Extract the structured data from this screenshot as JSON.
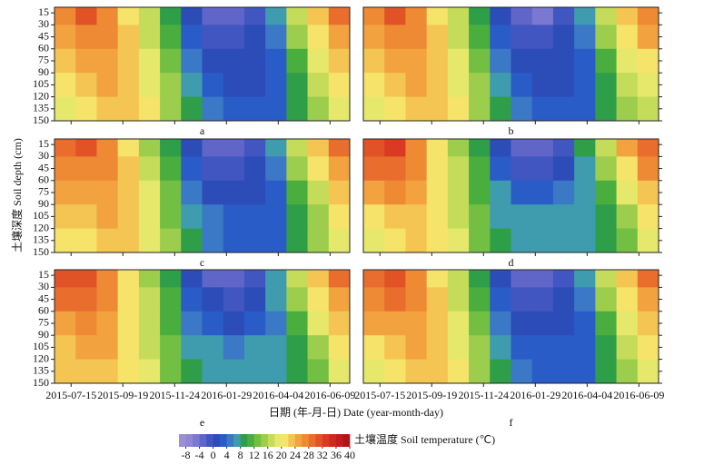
{
  "chart_data": {
    "type": "heatmap",
    "y_label": "土壤深度 Soil depth (cm)",
    "x_label": "日期 (年-月-日) Date (year-month-day)",
    "xticks": [
      "2015-07-15",
      "2015-09-19",
      "2015-11-24",
      "2016-01-29",
      "2016-04-04",
      "2016-06-09"
    ],
    "ylim": [
      8,
      150
    ],
    "yticks": [
      15,
      30,
      45,
      60,
      75,
      90,
      105,
      120,
      135,
      150
    ],
    "depths": [
      15,
      45,
      75,
      105,
      135
    ],
    "colorbar": {
      "label": "土壤温度 Soil temperature (℃)",
      "clim": [
        -10,
        40
      ],
      "ticks": [
        -8,
        -4,
        0,
        4,
        8,
        12,
        16,
        20,
        24,
        28,
        32,
        36,
        40
      ],
      "colors": [
        "#9d8fd4",
        "#8f86d6",
        "#7a78d0",
        "#5f66c8",
        "#4156c0",
        "#2c4cb8",
        "#2a5cc8",
        "#3b78c6",
        "#3f9cae",
        "#2f9e49",
        "#4aae3e",
        "#73bf43",
        "#9ccd4c",
        "#c5dc5a",
        "#e6e86c",
        "#f6e36a",
        "#f5c553",
        "#f2a33f",
        "#ee8934",
        "#e96d2d",
        "#e25227",
        "#da3a23",
        "#d02a20",
        "#c21d1b",
        "#b01515"
      ]
    },
    "panels": [
      {
        "label": "a",
        "values": [
          [
            27,
            30,
            26,
            21,
            16,
            9,
            1,
            -4,
            -4,
            -1,
            6,
            16,
            23,
            28
          ],
          [
            25,
            27,
            26,
            22,
            17,
            11,
            3,
            -2,
            -2,
            0,
            5,
            14,
            21,
            25
          ],
          [
            23,
            25,
            25,
            22,
            18,
            12,
            5,
            0,
            0,
            1,
            3,
            11,
            18,
            22
          ],
          [
            21,
            23,
            24,
            22,
            19,
            14,
            7,
            2,
            1,
            1,
            3,
            9,
            16,
            20
          ],
          [
            19,
            21,
            22,
            22,
            20,
            15,
            9,
            4,
            2,
            2,
            3,
            8,
            14,
            18
          ]
        ]
      },
      {
        "label": "b",
        "values": [
          [
            26,
            30,
            27,
            21,
            16,
            9,
            1,
            -4,
            -5,
            -1,
            6,
            17,
            23,
            27
          ],
          [
            24,
            27,
            26,
            22,
            17,
            11,
            3,
            -2,
            -2,
            0,
            5,
            14,
            21,
            24
          ],
          [
            22,
            25,
            25,
            22,
            18,
            12,
            5,
            0,
            0,
            0,
            3,
            11,
            18,
            21
          ],
          [
            20,
            23,
            24,
            22,
            19,
            14,
            7,
            2,
            1,
            1,
            3,
            9,
            16,
            19
          ],
          [
            18,
            21,
            22,
            22,
            20,
            15,
            9,
            4,
            2,
            2,
            3,
            8,
            14,
            17
          ]
        ]
      },
      {
        "label": "c",
        "values": [
          [
            29,
            30,
            27,
            21,
            15,
            8,
            1,
            -3,
            -4,
            -1,
            7,
            16,
            23,
            28
          ],
          [
            26,
            27,
            26,
            22,
            16,
            10,
            3,
            -1,
            -2,
            0,
            5,
            14,
            20,
            25
          ],
          [
            24,
            25,
            25,
            22,
            18,
            12,
            5,
            1,
            0,
            1,
            3,
            11,
            17,
            22
          ],
          [
            22,
            23,
            24,
            22,
            19,
            13,
            7,
            4,
            2,
            2,
            3,
            9,
            15,
            20
          ],
          [
            20,
            21,
            22,
            22,
            19,
            14,
            9,
            5,
            3,
            3,
            3,
            8,
            14,
            18
          ]
        ]
      },
      {
        "label": "d",
        "values": [
          [
            30,
            32,
            27,
            20,
            15,
            8,
            1,
            -3,
            -4,
            -1,
            8,
            17,
            24,
            29
          ],
          [
            28,
            29,
            26,
            21,
            16,
            10,
            3,
            -1,
            -2,
            0,
            6,
            14,
            21,
            26
          ],
          [
            24,
            26,
            25,
            21,
            17,
            11,
            6,
            3,
            2,
            5,
            6,
            11,
            18,
            23
          ],
          [
            21,
            23,
            23,
            21,
            17,
            12,
            7,
            6,
            6,
            6,
            6,
            9,
            15,
            20
          ],
          [
            19,
            21,
            22,
            21,
            18,
            13,
            8,
            7,
            7,
            7,
            7,
            8,
            13,
            18
          ]
        ]
      },
      {
        "label": "e",
        "values": [
          [
            31,
            31,
            27,
            21,
            15,
            8,
            1,
            -3,
            -3,
            -1,
            7,
            16,
            23,
            28
          ],
          [
            28,
            28,
            26,
            21,
            16,
            10,
            3,
            0,
            -1,
            0,
            6,
            14,
            21,
            25
          ],
          [
            25,
            26,
            25,
            21,
            17,
            11,
            5,
            2,
            1,
            2,
            5,
            11,
            18,
            23
          ],
          [
            23,
            24,
            24,
            21,
            17,
            12,
            7,
            6,
            5,
            6,
            6,
            9,
            15,
            21
          ],
          [
            22,
            23,
            23,
            21,
            18,
            13,
            8,
            7,
            7,
            7,
            7,
            8,
            13,
            19
          ]
        ]
      },
      {
        "label": "f",
        "values": [
          [
            29,
            31,
            27,
            21,
            16,
            8,
            0,
            -4,
            -4,
            -1,
            7,
            17,
            23,
            28
          ],
          [
            27,
            28,
            26,
            22,
            17,
            10,
            2,
            -2,
            -2,
            0,
            5,
            14,
            21,
            25
          ],
          [
            24,
            25,
            25,
            22,
            18,
            12,
            4,
            0,
            0,
            0,
            3,
            11,
            18,
            22
          ],
          [
            21,
            23,
            24,
            22,
            19,
            14,
            6,
            2,
            2,
            2,
            3,
            9,
            16,
            20
          ],
          [
            19,
            21,
            22,
            22,
            20,
            15,
            8,
            4,
            3,
            3,
            3,
            8,
            14,
            18
          ]
        ]
      }
    ]
  }
}
